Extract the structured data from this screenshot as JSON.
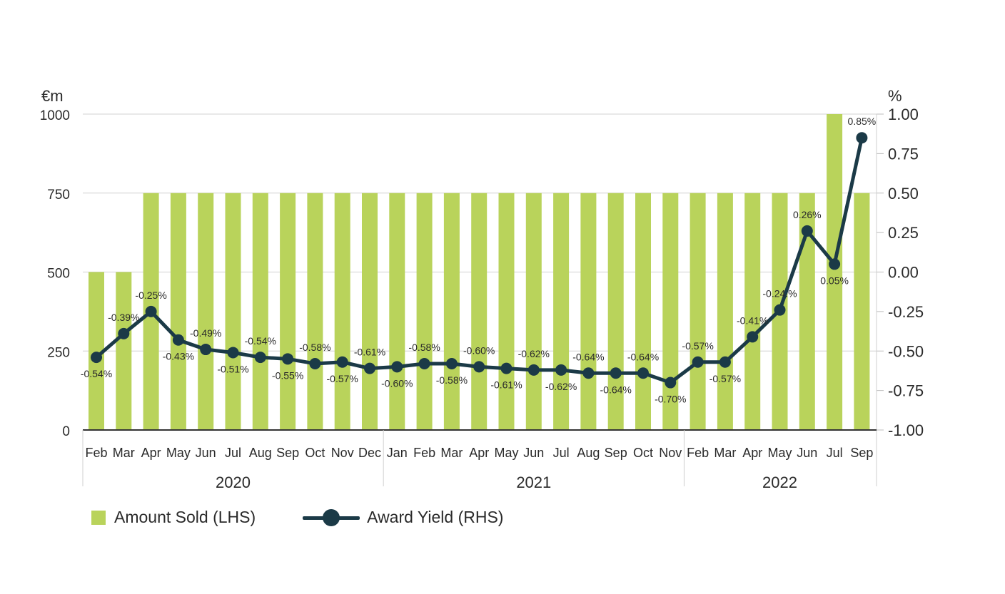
{
  "chart_data": {
    "type": "bar",
    "left_axis_unit": "€m",
    "right_axis_unit": "%",
    "ylim_left": [
      0,
      1000
    ],
    "ylim_right": [
      -1.0,
      1.0
    ],
    "left_ticks": [
      "0",
      "250",
      "500",
      "750",
      "1000"
    ],
    "right_ticks": [
      "-1.00",
      "-0.75",
      "-0.50",
      "-0.25",
      "0.00",
      "0.25",
      "0.50",
      "0.75",
      "1.00"
    ],
    "categories": [
      "Feb",
      "Mar",
      "Apr",
      "May",
      "Jun",
      "Jul",
      "Aug",
      "Sep",
      "Oct",
      "Nov",
      "Dec",
      "Jan",
      "Feb",
      "Mar",
      "Apr",
      "May",
      "Jun",
      "Jul",
      "Aug",
      "Sep",
      "Oct",
      "Nov",
      "Feb",
      "Mar",
      "Apr",
      "May",
      "Jun",
      "Jul",
      "Sep"
    ],
    "year_groups": [
      {
        "label": "2020",
        "count": 11
      },
      {
        "label": "2021",
        "count": 11
      },
      {
        "label": "2022",
        "count": 7
      }
    ],
    "series": [
      {
        "name": "Amount Sold (LHS)",
        "type": "bar",
        "axis": "left",
        "color": "#b9d35b",
        "values": [
          500,
          500,
          750,
          750,
          750,
          750,
          750,
          750,
          750,
          750,
          750,
          750,
          750,
          750,
          750,
          750,
          750,
          750,
          750,
          750,
          750,
          750,
          750,
          750,
          750,
          750,
          750,
          1000,
          750
        ]
      },
      {
        "name": "Award Yield (RHS)",
        "type": "line",
        "axis": "right",
        "color": "#1b3a47",
        "values": [
          -0.54,
          -0.39,
          -0.25,
          -0.43,
          -0.49,
          -0.51,
          -0.54,
          -0.55,
          -0.58,
          -0.57,
          -0.61,
          -0.6,
          -0.58,
          -0.58,
          -0.6,
          -0.61,
          -0.62,
          -0.62,
          -0.64,
          -0.64,
          -0.64,
          -0.7,
          -0.57,
          -0.57,
          -0.41,
          -0.24,
          0.26,
          0.05,
          0.85
        ],
        "labels": [
          "-0.54%",
          "-0.39%",
          "-0.25%",
          "-0.43%",
          "-0.49%",
          "-0.51%",
          "-0.54%",
          "-0.55%",
          "-0.58%",
          "-0.57%",
          "-0.61%",
          "-0.60%",
          "-0.58%",
          "-0.58%",
          "-0.60%",
          "-0.61%",
          "-0.62%",
          "-0.62%",
          "-0.64%",
          "-0.64%",
          "-0.64%",
          "-0.70%",
          "-0.57%",
          "-0.57%",
          "-0.41%",
          "-0.24.%",
          "0.26%",
          "0.05%",
          "0.85%"
        ],
        "label_positions": [
          "below",
          "above",
          "above",
          "below",
          "above",
          "below",
          "above",
          "below",
          "above",
          "below",
          "above",
          "below",
          "above",
          "below",
          "above",
          "below",
          "above",
          "below",
          "above",
          "below",
          "above",
          "below",
          "above",
          "below",
          "above",
          "above",
          "above",
          "below",
          "above"
        ]
      }
    ],
    "grid": true,
    "legend_position": "bottom-left"
  },
  "legend": {
    "bars_label": "Amount Sold (LHS)",
    "line_label": "Award Yield (RHS)"
  }
}
